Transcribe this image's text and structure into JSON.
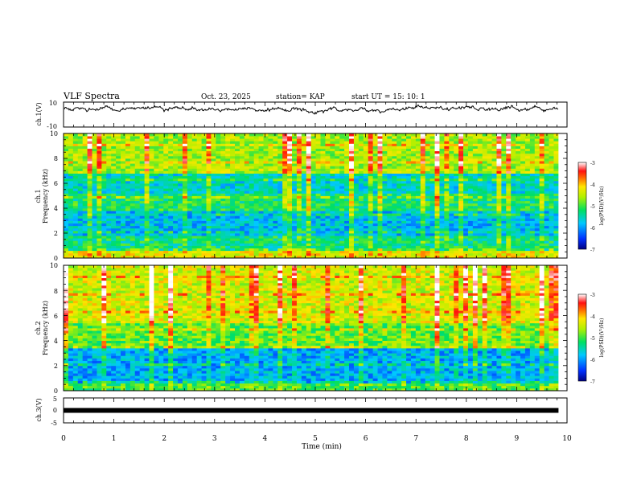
{
  "header": {
    "title": "VLF Spectra",
    "date": "Oct. 23, 2025",
    "station": "station= KAP",
    "start_time": "start  UT =   15: 10: 1"
  },
  "chart_data": [
    {
      "type": "line",
      "name": "ch1-waveform",
      "ylabel": "ch.1(V)",
      "ylim": [
        -10,
        10
      ],
      "yticks": [
        "10",
        "-10"
      ],
      "xlim": [
        0,
        10
      ],
      "end_minute": 9.83,
      "baseline_volts": 4.5,
      "excursion_volts": 4
    },
    {
      "type": "heatmap",
      "name": "ch1-spectrogram",
      "ylabel_line1": "ch.1",
      "ylabel_line2": "Frequency (kHz)",
      "ylim": [
        0,
        10
      ],
      "yticks": [
        "0",
        "2",
        "4",
        "6",
        "8",
        "10"
      ],
      "xlim": [
        0,
        10
      ],
      "colorbar": {
        "label": "log(PSD)(V²/Hz)",
        "range": [
          -7,
          -3
        ],
        "ticks": [
          "-3",
          "-4",
          "-5",
          "-6",
          "-7"
        ]
      },
      "band_psd": [
        {
          "from_khz": 0.0,
          "to_khz": 0.6,
          "log_psd": -4.3
        },
        {
          "from_khz": 0.6,
          "to_khz": 1.8,
          "log_psd": -5.3
        },
        {
          "from_khz": 1.8,
          "to_khz": 3.8,
          "log_psd": -5.8
        },
        {
          "from_khz": 3.8,
          "to_khz": 5.2,
          "log_psd": -5.2
        },
        {
          "from_khz": 5.2,
          "to_khz": 6.8,
          "log_psd": -5.6
        },
        {
          "from_khz": 6.8,
          "to_khz": 10.0,
          "log_psd": -4.6
        }
      ]
    },
    {
      "type": "heatmap",
      "name": "ch2-spectrogram",
      "ylabel_line1": "ch.2",
      "ylabel_line2": "Frequency (kHz)",
      "ylim": [
        0,
        10
      ],
      "yticks": [
        "0",
        "2",
        "4",
        "6",
        "8",
        "10"
      ],
      "xlim": [
        0,
        10
      ],
      "colorbar": {
        "label": "log(PSD)(V²/Hz)",
        "range": [
          -7,
          -3
        ],
        "ticks": [
          "-3",
          "-4",
          "-5",
          "-6",
          "-7"
        ]
      },
      "band_psd": [
        {
          "from_khz": 0.0,
          "to_khz": 0.6,
          "log_psd": -5.0
        },
        {
          "from_khz": 0.6,
          "to_khz": 3.5,
          "log_psd": -5.9
        },
        {
          "from_khz": 3.5,
          "to_khz": 5.5,
          "log_psd": -4.9
        },
        {
          "from_khz": 5.5,
          "to_khz": 10.0,
          "log_psd": -4.4
        }
      ]
    },
    {
      "type": "line",
      "name": "ch3-level",
      "ylabel": "ch.3(V)",
      "ylim": [
        -5,
        5
      ],
      "yticks": [
        "5",
        "0",
        "-5"
      ],
      "xlim": [
        0,
        10
      ],
      "level_volts": 0,
      "end_minute": 9.83
    }
  ],
  "xaxis": {
    "label": "Time (min)",
    "ticks": [
      "0",
      "1",
      "2",
      "3",
      "4",
      "5",
      "6",
      "7",
      "8",
      "9",
      "10"
    ]
  },
  "colors": {
    "line": "#000000",
    "colormap": [
      "#0000a0",
      "#0050ff",
      "#00c8ff",
      "#00e890",
      "#22e822",
      "#c8f000",
      "#ffe600",
      "#ff8800",
      "#ff1a1a",
      "#ffd0d0",
      "#ffffff"
    ]
  }
}
